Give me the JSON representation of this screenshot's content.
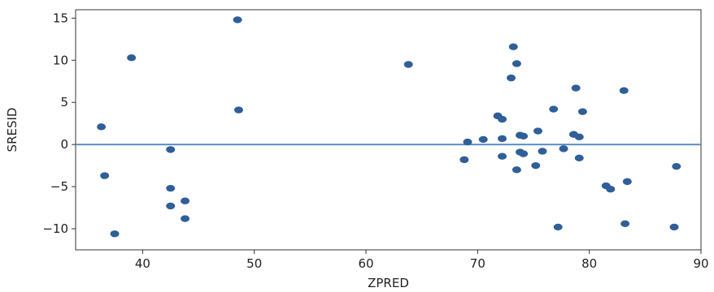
{
  "chart_data": {
    "type": "scatter",
    "title": "",
    "xlabel": "ZPRED",
    "ylabel": "SRESID",
    "xlim": [
      34,
      90
    ],
    "ylim": [
      -12.5,
      16
    ],
    "xticks": [
      40,
      50,
      60,
      70,
      80,
      90
    ],
    "yticks": [
      -10,
      -5,
      0,
      5,
      10,
      15
    ],
    "grid": false,
    "reference_line": {
      "y": 0
    },
    "colors": {
      "points": "#2f5f98",
      "reference_line": "#4f88c4",
      "axes": "#333333"
    },
    "points": [
      {
        "x": 36.3,
        "y": 2.1
      },
      {
        "x": 36.6,
        "y": -3.7
      },
      {
        "x": 37.5,
        "y": -10.6
      },
      {
        "x": 39.0,
        "y": 10.3
      },
      {
        "x": 42.5,
        "y": -0.6
      },
      {
        "x": 42.5,
        "y": -5.2
      },
      {
        "x": 42.5,
        "y": -7.3
      },
      {
        "x": 43.8,
        "y": -6.7
      },
      {
        "x": 43.8,
        "y": -8.8
      },
      {
        "x": 48.5,
        "y": 14.8
      },
      {
        "x": 48.6,
        "y": 4.1
      },
      {
        "x": 63.8,
        "y": 9.5
      },
      {
        "x": 68.8,
        "y": -1.8
      },
      {
        "x": 69.1,
        "y": 0.3
      },
      {
        "x": 70.5,
        "y": 0.6
      },
      {
        "x": 71.8,
        "y": 3.4
      },
      {
        "x": 72.2,
        "y": 3.0
      },
      {
        "x": 72.2,
        "y": 0.7
      },
      {
        "x": 72.2,
        "y": -1.4
      },
      {
        "x": 73.0,
        "y": 7.9
      },
      {
        "x": 73.2,
        "y": 11.6
      },
      {
        "x": 73.5,
        "y": 9.6
      },
      {
        "x": 73.5,
        "y": -3.0
      },
      {
        "x": 73.8,
        "y": 1.1
      },
      {
        "x": 74.1,
        "y": 1.0
      },
      {
        "x": 73.8,
        "y": -0.9
      },
      {
        "x": 74.1,
        "y": -1.1
      },
      {
        "x": 75.2,
        "y": -2.5
      },
      {
        "x": 75.4,
        "y": 1.6
      },
      {
        "x": 75.8,
        "y": -0.8
      },
      {
        "x": 76.8,
        "y": 4.2
      },
      {
        "x": 77.2,
        "y": -9.8
      },
      {
        "x": 77.7,
        "y": -0.5
      },
      {
        "x": 78.6,
        "y": 1.2
      },
      {
        "x": 78.8,
        "y": 6.7
      },
      {
        "x": 79.1,
        "y": 0.9
      },
      {
        "x": 79.1,
        "y": -1.6
      },
      {
        "x": 79.4,
        "y": 3.9
      },
      {
        "x": 81.5,
        "y": -4.9
      },
      {
        "x": 81.9,
        "y": -5.3
      },
      {
        "x": 83.1,
        "y": 6.4
      },
      {
        "x": 83.2,
        "y": -9.4
      },
      {
        "x": 83.4,
        "y": -4.4
      },
      {
        "x": 87.6,
        "y": -9.8
      },
      {
        "x": 87.8,
        "y": -2.6
      }
    ]
  }
}
